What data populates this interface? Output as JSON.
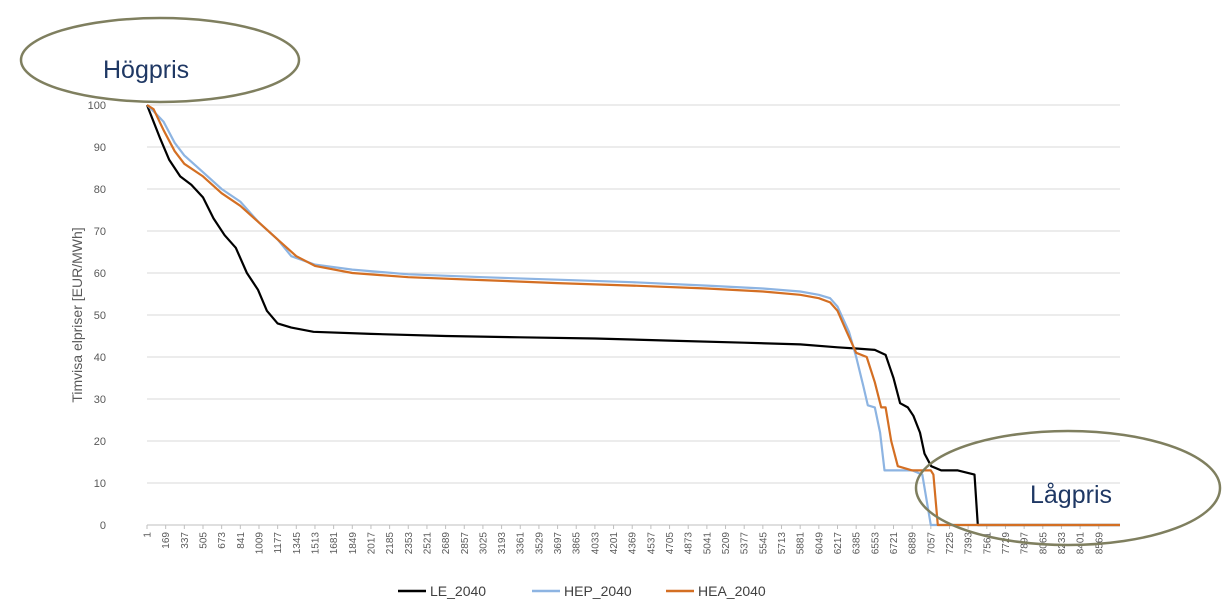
{
  "chart_data": {
    "type": "line",
    "title": "",
    "xlabel": "",
    "ylabel": "Timvisa elpriser [EUR/MWh]",
    "xlim": [
      1,
      8760
    ],
    "ylim": [
      0,
      100
    ],
    "y_ticks": [
      0,
      10,
      20,
      30,
      40,
      50,
      60,
      70,
      80,
      90,
      100
    ],
    "x_ticks": [
      1,
      169,
      337,
      505,
      673,
      841,
      1009,
      1177,
      1345,
      1513,
      1681,
      1849,
      2017,
      2185,
      2353,
      2521,
      2689,
      2857,
      3025,
      3193,
      3361,
      3529,
      3697,
      3865,
      4033,
      4201,
      4369,
      4537,
      4705,
      4873,
      5041,
      5209,
      5377,
      5545,
      5713,
      5881,
      6049,
      6217,
      6385,
      6553,
      6721,
      6889,
      7057,
      7225,
      7393,
      7561,
      7729,
      7897,
      8065,
      8233,
      8401,
      8569
    ],
    "grid": "horizontal",
    "legend_position": "bottom",
    "series": [
      {
        "name": "LE_2040",
        "color": "#000000",
        "points": [
          [
            1,
            100
          ],
          [
            60,
            96
          ],
          [
            120,
            92
          ],
          [
            200,
            87
          ],
          [
            300,
            83
          ],
          [
            400,
            81
          ],
          [
            505,
            78
          ],
          [
            600,
            73
          ],
          [
            700,
            69
          ],
          [
            800,
            66
          ],
          [
            900,
            60
          ],
          [
            1000,
            56
          ],
          [
            1080,
            51
          ],
          [
            1177,
            48
          ],
          [
            1300,
            47
          ],
          [
            1500,
            46
          ],
          [
            2017,
            45.5
          ],
          [
            2689,
            45
          ],
          [
            3361,
            44.7
          ],
          [
            4033,
            44.4
          ],
          [
            4705,
            43.9
          ],
          [
            5377,
            43.4
          ],
          [
            5881,
            43
          ],
          [
            6217,
            42.3
          ],
          [
            6400,
            42
          ],
          [
            6553,
            41.7
          ],
          [
            6650,
            40.5
          ],
          [
            6721,
            35
          ],
          [
            6780,
            29
          ],
          [
            6850,
            28
          ],
          [
            6900,
            26
          ],
          [
            6960,
            22
          ],
          [
            7000,
            17
          ],
          [
            7060,
            14
          ],
          [
            7150,
            13
          ],
          [
            7300,
            13
          ],
          [
            7450,
            12
          ],
          [
            7480,
            0
          ],
          [
            8760,
            0
          ]
        ]
      },
      {
        "name": "HEP_2040",
        "color": "#8db4e2",
        "points": [
          [
            1,
            100
          ],
          [
            60,
            98.5
          ],
          [
            150,
            96
          ],
          [
            250,
            91
          ],
          [
            337,
            88
          ],
          [
            505,
            84
          ],
          [
            673,
            80
          ],
          [
            841,
            77
          ],
          [
            1009,
            72
          ],
          [
            1177,
            68
          ],
          [
            1300,
            64
          ],
          [
            1513,
            62
          ],
          [
            1849,
            60.8
          ],
          [
            2353,
            59.7
          ],
          [
            3025,
            59
          ],
          [
            3697,
            58.4
          ],
          [
            4369,
            57.8
          ],
          [
            5041,
            57
          ],
          [
            5545,
            56.3
          ],
          [
            5881,
            55.6
          ],
          [
            6049,
            54.8
          ],
          [
            6150,
            54
          ],
          [
            6217,
            52
          ],
          [
            6320,
            46
          ],
          [
            6385,
            40
          ],
          [
            6450,
            33
          ],
          [
            6490,
            28.5
          ],
          [
            6553,
            28
          ],
          [
            6600,
            22
          ],
          [
            6640,
            13
          ],
          [
            6721,
            13
          ],
          [
            6889,
            13
          ],
          [
            6980,
            12
          ],
          [
            7057,
            0
          ],
          [
            8760,
            0
          ]
        ]
      },
      {
        "name": "HEA_2040",
        "color": "#d46f23",
        "points": [
          [
            1,
            100
          ],
          [
            60,
            99
          ],
          [
            150,
            94
          ],
          [
            250,
            89
          ],
          [
            337,
            86
          ],
          [
            505,
            83
          ],
          [
            673,
            79
          ],
          [
            841,
            76
          ],
          [
            1009,
            72
          ],
          [
            1177,
            68
          ],
          [
            1345,
            64
          ],
          [
            1513,
            61.7
          ],
          [
            1849,
            60
          ],
          [
            2353,
            59
          ],
          [
            3025,
            58.3
          ],
          [
            3697,
            57.6
          ],
          [
            4369,
            57
          ],
          [
            5041,
            56.3
          ],
          [
            5545,
            55.6
          ],
          [
            5881,
            54.8
          ],
          [
            6049,
            54
          ],
          [
            6150,
            53
          ],
          [
            6217,
            51
          ],
          [
            6300,
            46
          ],
          [
            6385,
            41
          ],
          [
            6480,
            40
          ],
          [
            6553,
            34
          ],
          [
            6610,
            28
          ],
          [
            6650,
            28
          ],
          [
            6700,
            20
          ],
          [
            6760,
            14
          ],
          [
            6889,
            13
          ],
          [
            7057,
            13
          ],
          [
            7080,
            12
          ],
          [
            7120,
            0
          ],
          [
            8760,
            0
          ]
        ]
      }
    ],
    "annotations": [
      {
        "text": "Högpris",
        "position": "top-left"
      },
      {
        "text": "Lågpris",
        "position": "bottom-right"
      }
    ]
  }
}
